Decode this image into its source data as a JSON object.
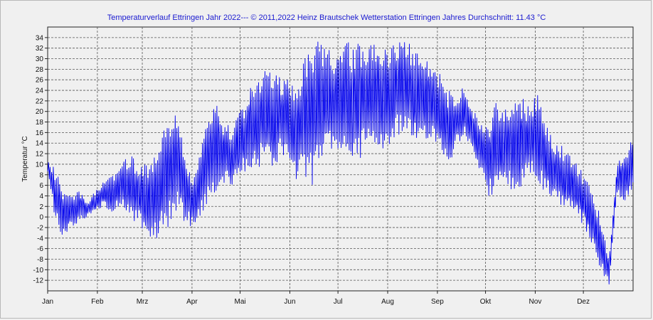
{
  "title": "Temperaturverlauf Ettringen Jahr 2022--- © 2011,2022 Heinz Brautschek Wetterstation Ettringen Jahres Durchschnitt: 11.43 °C",
  "colors": {
    "line": "#0000ee",
    "grid": "#555555",
    "plot_background": "#f0f0f0"
  },
  "chart_data": {
    "type": "line",
    "title": "Temperaturverlauf Ettringen Jahr 2022--- © 2011,2022 Heinz Brautschek Wetterstation Ettringen Jahres Durchschnitt: 11.43 °C",
    "xlabel": "",
    "ylabel": "Temperatur °C",
    "ylim": [
      -14,
      36
    ],
    "xlim": [
      0,
      365
    ],
    "grid": true,
    "legend": "none",
    "yticks": [
      -12,
      -10,
      -8,
      -6,
      -4,
      -2,
      0,
      2,
      4,
      6,
      8,
      10,
      12,
      14,
      16,
      18,
      20,
      22,
      24,
      26,
      28,
      30,
      32,
      34
    ],
    "x_tick_labels": [
      {
        "day": 0,
        "label": "Jan"
      },
      {
        "day": 31,
        "label": "Feb"
      },
      {
        "day": 59,
        "label": "Mrz"
      },
      {
        "day": 90,
        "label": "Apr"
      },
      {
        "day": 120,
        "label": "Mai"
      },
      {
        "day": 151,
        "label": "Jun"
      },
      {
        "day": 181,
        "label": "Jul"
      },
      {
        "day": 212,
        "label": "Aug"
      },
      {
        "day": 243,
        "label": "Sep"
      },
      {
        "day": 273,
        "label": "Okt"
      },
      {
        "day": 304,
        "label": "Nov"
      },
      {
        "day": 334,
        "label": "Dez"
      }
    ],
    "series": [
      {
        "sampling": "daily minimum and maximum (approximate)",
        "day": [
          0,
          5,
          10,
          15,
          20,
          25,
          30,
          35,
          40,
          45,
          50,
          55,
          60,
          65,
          70,
          75,
          80,
          85,
          90,
          95,
          100,
          105,
          110,
          115,
          120,
          125,
          130,
          135,
          140,
          145,
          150,
          155,
          160,
          165,
          170,
          175,
          180,
          185,
          190,
          195,
          200,
          205,
          210,
          215,
          220,
          225,
          230,
          235,
          240,
          245,
          250,
          255,
          260,
          265,
          270,
          275,
          280,
          285,
          290,
          295,
          300,
          305,
          310,
          315,
          320,
          325,
          330,
          335,
          340,
          345,
          350,
          355,
          360,
          365
        ],
        "min": [
          8,
          -1,
          -4,
          -2,
          -1,
          0,
          1,
          2,
          1,
          2,
          0,
          -1,
          -3,
          -6,
          -4,
          -2,
          1,
          -1,
          -2,
          0,
          3,
          5,
          6,
          6,
          7,
          9,
          9,
          10,
          9,
          11,
          12,
          7,
          8,
          6,
          10,
          12,
          11,
          13,
          9,
          11,
          15,
          13,
          13,
          14,
          16,
          16,
          14,
          14,
          15,
          12,
          9,
          14,
          15,
          13,
          8,
          4,
          4,
          6,
          5,
          5,
          8,
          6,
          4,
          3,
          2,
          1,
          0,
          -2,
          -6,
          -10,
          -13,
          4,
          3,
          5
        ],
        "max": [
          11,
          9,
          5,
          4,
          5,
          3,
          5,
          7,
          8,
          9,
          12,
          11,
          10,
          11,
          15,
          18,
          20,
          13,
          7,
          12,
          20,
          22,
          18,
          17,
          20,
          24,
          26,
          29,
          27,
          27,
          26,
          24,
          31,
          32,
          35,
          33,
          32,
          34,
          33,
          33,
          32,
          35,
          33,
          33,
          35,
          33,
          31,
          31,
          30,
          27,
          24,
          23,
          25,
          20,
          19,
          18,
          22,
          21,
          23,
          23,
          21,
          24,
          19,
          15,
          14,
          12,
          10,
          8,
          4,
          0,
          -8,
          11,
          12,
          15
        ]
      }
    ]
  }
}
